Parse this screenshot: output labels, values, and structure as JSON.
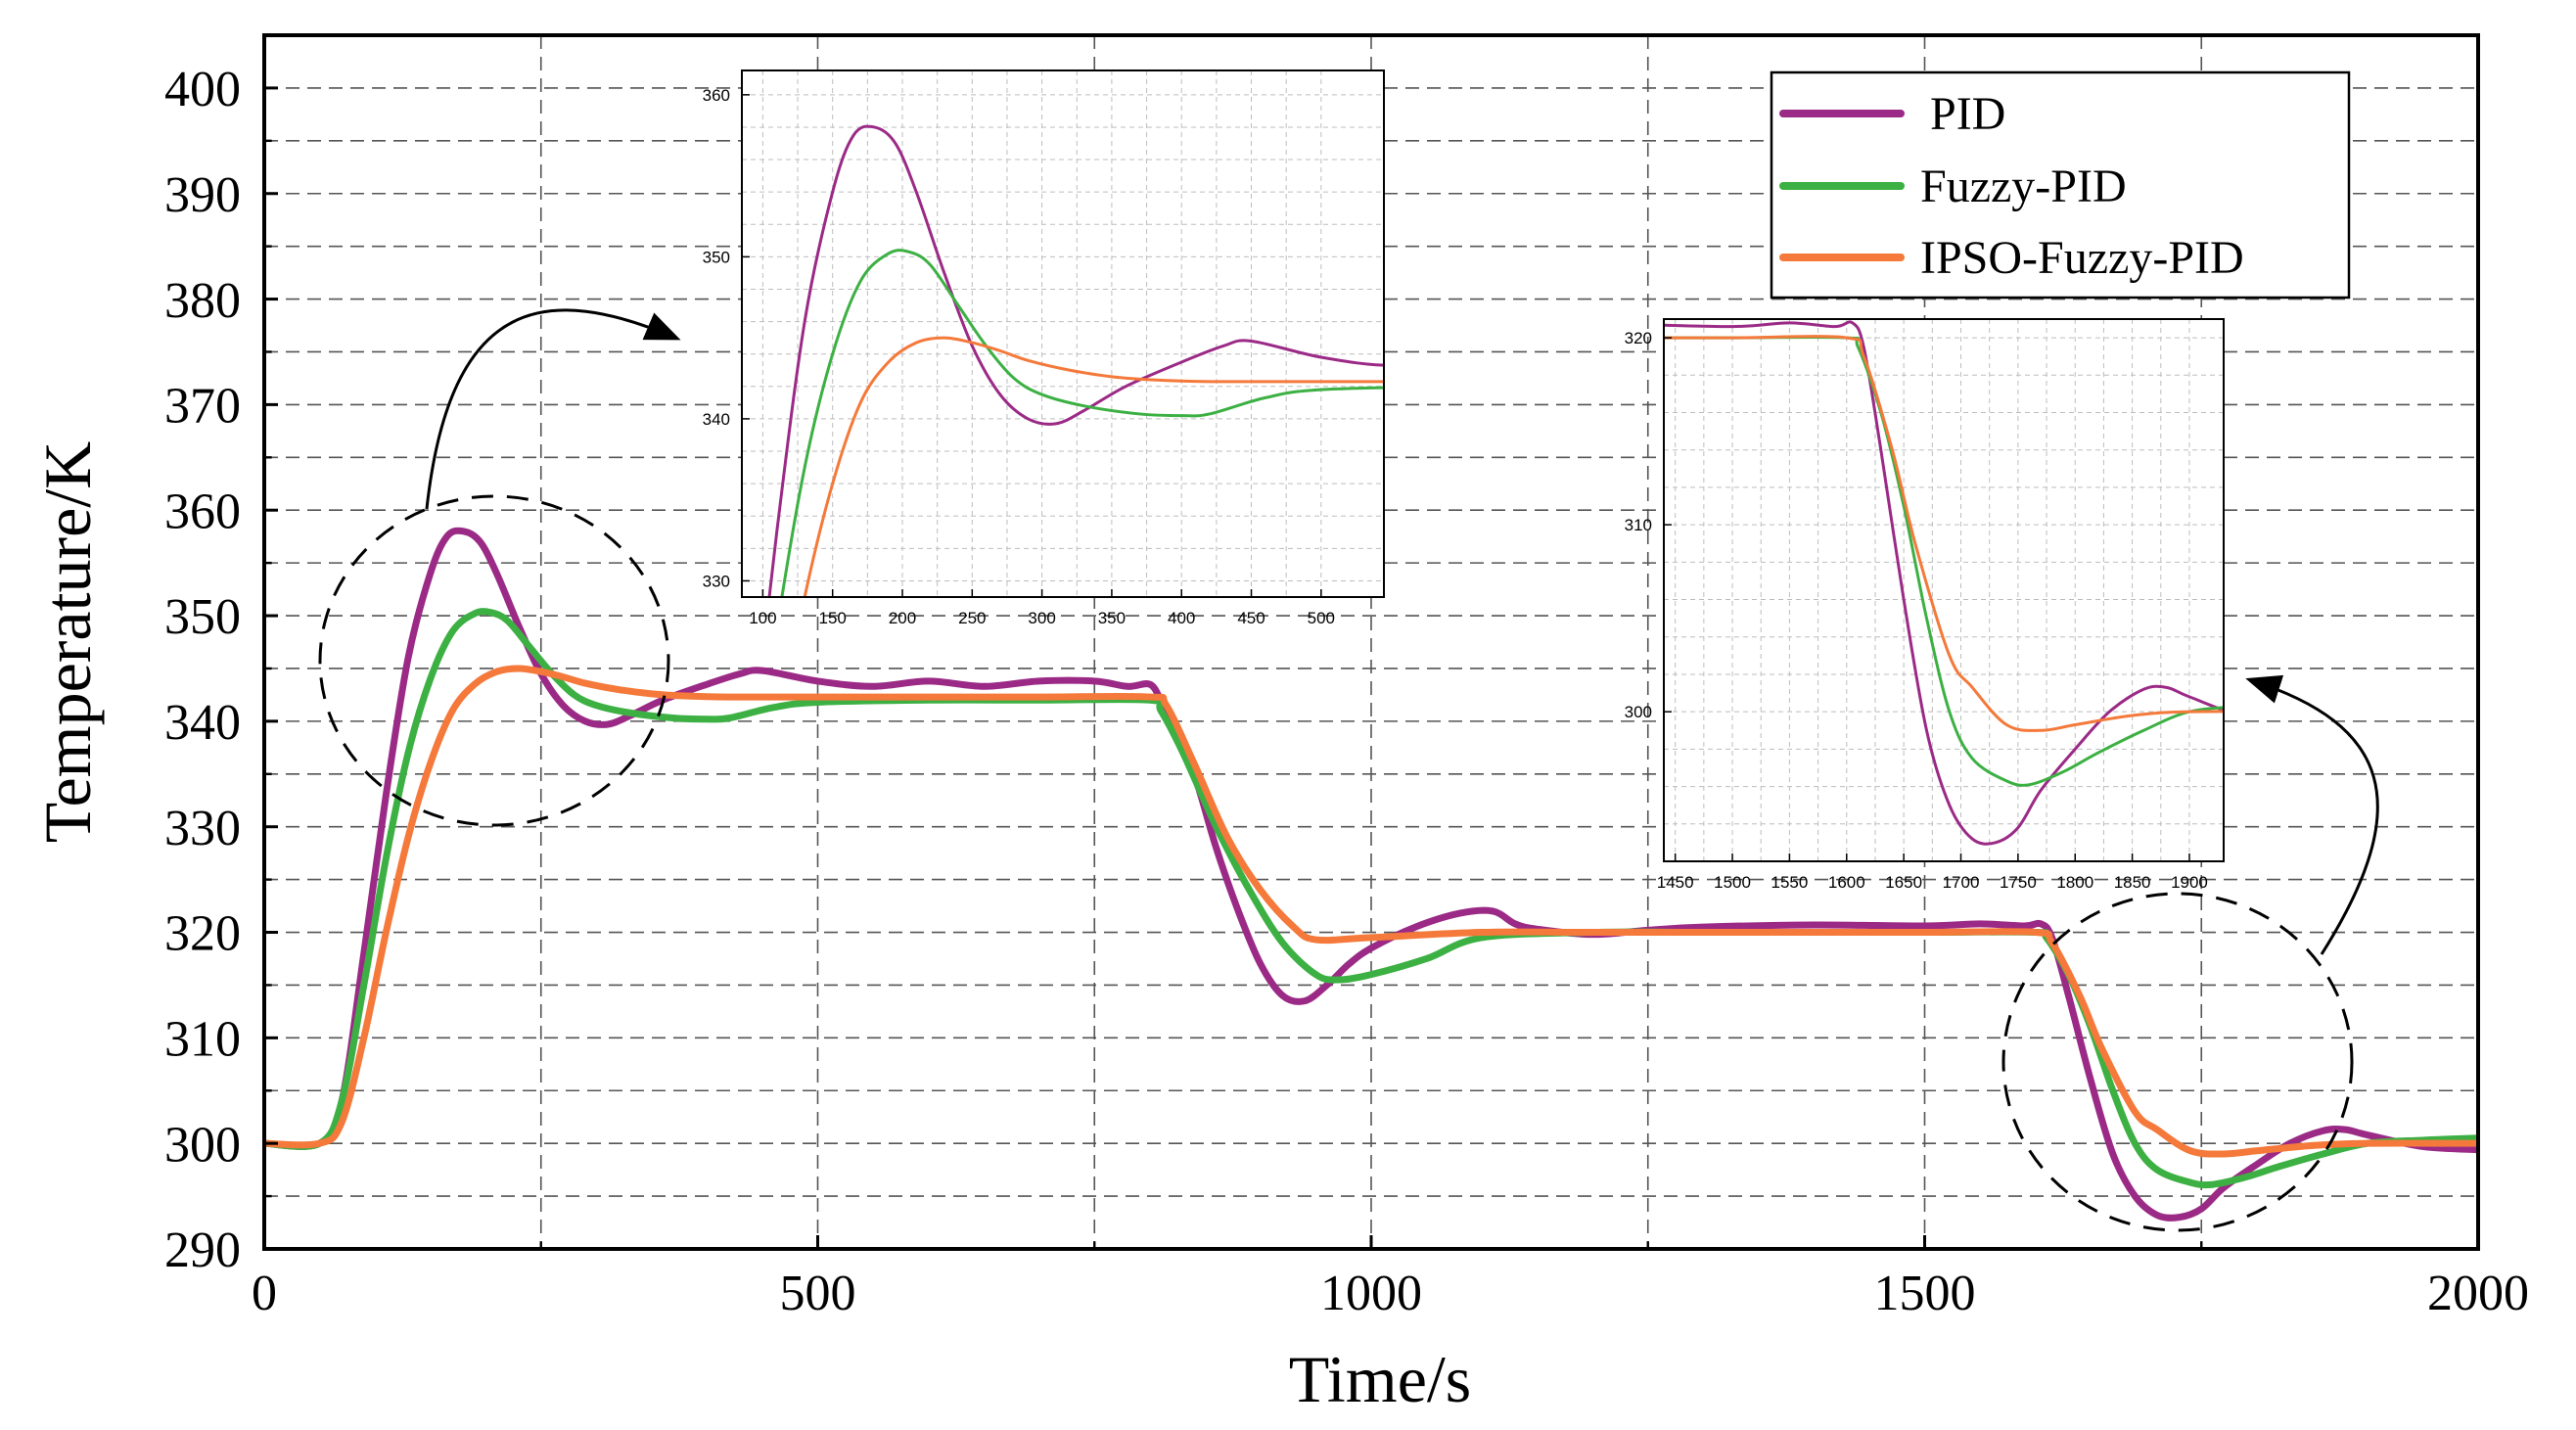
{
  "chart_data": {
    "type": "line",
    "xlabel": "Time/s",
    "ylabel": "Temperature/K",
    "xlim": [
      0,
      2000
    ],
    "ylim": [
      290,
      405
    ],
    "xticks": [
      0,
      500,
      1000,
      1500,
      2000
    ],
    "yticks": [
      290,
      300,
      310,
      320,
      330,
      340,
      350,
      360,
      370,
      380,
      390,
      400
    ],
    "grid": true,
    "legend_position": "top-right",
    "series": [
      {
        "name": "PID",
        "color": "#9B2A86",
        "x": [
          0,
          50,
          70,
          90,
          110,
          130,
          150,
          165,
          180,
          195,
          210,
          230,
          250,
          270,
          290,
          310,
          330,
          360,
          400,
          430,
          450,
          500,
          550,
          600,
          650,
          700,
          750,
          780,
          800,
          810,
          820,
          840,
          860,
          880,
          900,
          920,
          940,
          960,
          980,
          1000,
          1040,
          1080,
          1110,
          1130,
          1150,
          1200,
          1250,
          1300,
          1400,
          1500,
          1550,
          1590,
          1605,
          1615,
          1630,
          1650,
          1670,
          1690,
          1710,
          1730,
          1750,
          1770,
          1800,
          1830,
          1860,
          1880,
          1900,
          1950,
          2000
        ],
        "y": [
          300,
          300,
          304,
          318,
          333,
          346,
          354,
          357.5,
          358,
          357,
          354,
          349,
          344.5,
          341.5,
          340,
          339.7,
          340.5,
          342,
          343.5,
          344.5,
          344.8,
          343.8,
          343.3,
          343.8,
          343.3,
          343.8,
          343.8,
          343.3,
          343.5,
          342,
          340,
          335,
          328,
          322,
          317,
          314,
          313.5,
          315,
          317,
          318.5,
          320.5,
          321.8,
          322,
          320.8,
          320.3,
          319.8,
          320.2,
          320.5,
          320.7,
          320.6,
          320.8,
          320.6,
          320.8,
          319.5,
          314,
          306,
          299,
          295,
          293.2,
          293,
          293.8,
          295.8,
          298,
          300,
          301.2,
          301.3,
          300.8,
          299.7,
          299.4
        ]
      },
      {
        "name": "Fuzzy-PID",
        "color": "#3CB043",
        "x": [
          0,
          50,
          70,
          90,
          110,
          130,
          150,
          170,
          190,
          205,
          220,
          240,
          260,
          280,
          300,
          330,
          370,
          400,
          420,
          460,
          500,
          600,
          700,
          800,
          810,
          830,
          860,
          890,
          920,
          950,
          970,
          1000,
          1050,
          1100,
          1200,
          1300,
          1400,
          1500,
          1600,
          1610,
          1630,
          1650,
          1670,
          1690,
          1710,
          1740,
          1760,
          1790,
          1820,
          1860,
          1900,
          1950,
          2000
        ],
        "y": [
          300,
          300,
          304,
          315,
          327,
          337,
          344,
          348.5,
          350.2,
          350.3,
          349.5,
          347,
          344.5,
          342.5,
          341.5,
          340.8,
          340.3,
          340.2,
          340.3,
          341.3,
          341.8,
          342,
          342,
          342,
          341,
          337,
          330,
          324,
          319,
          316,
          315.5,
          316,
          317.5,
          319.5,
          320,
          320,
          320,
          320,
          320,
          319.5,
          316,
          311,
          305,
          300,
          297.5,
          296.3,
          296.1,
          296.8,
          297.8,
          299,
          300,
          300.3,
          300.5
        ]
      },
      {
        "name": "IPSO-Fuzzy-PID",
        "color": "#F4793A",
        "x": [
          0,
          50,
          70,
          90,
          110,
          130,
          150,
          170,
          190,
          210,
          230,
          250,
          270,
          290,
          320,
          350,
          380,
          420,
          500,
          600,
          700,
          800,
          815,
          840,
          870,
          900,
          930,
          950,
          1000,
          1100,
          1200,
          1300,
          1400,
          1500,
          1600,
          1615,
          1640,
          1660,
          1690,
          1710,
          1740,
          1770,
          1800,
          1850,
          1900,
          2000
        ],
        "y": [
          300,
          300,
          302,
          310,
          320,
          329,
          336,
          341,
          343.5,
          344.7,
          345,
          344.7,
          344.2,
          343.6,
          343,
          342.6,
          342.4,
          342.3,
          342.3,
          342.3,
          342.3,
          342.3,
          341.5,
          336,
          329,
          324,
          320.5,
          319.3,
          319.5,
          320,
          320,
          320,
          320,
          320,
          320,
          319,
          314,
          309,
          303,
          301.3,
          299.3,
          299,
          299.3,
          299.8,
          300,
          300
        ]
      }
    ],
    "insets": [
      {
        "xlim": [
          85,
          545
        ],
        "ylim": [
          329,
          361.5
        ],
        "xticks": [
          100,
          150,
          200,
          250,
          300,
          350,
          400,
          450,
          500
        ],
        "yticks": [
          330,
          340,
          350,
          360
        ]
      },
      {
        "xlim": [
          1440,
          1930
        ],
        "ylim": [
          292,
          321
        ],
        "xticks": [
          1450,
          1500,
          1550,
          1600,
          1650,
          1700,
          1750,
          1800,
          1850,
          1900
        ],
        "yticks": [
          300,
          310,
          320
        ]
      }
    ]
  }
}
